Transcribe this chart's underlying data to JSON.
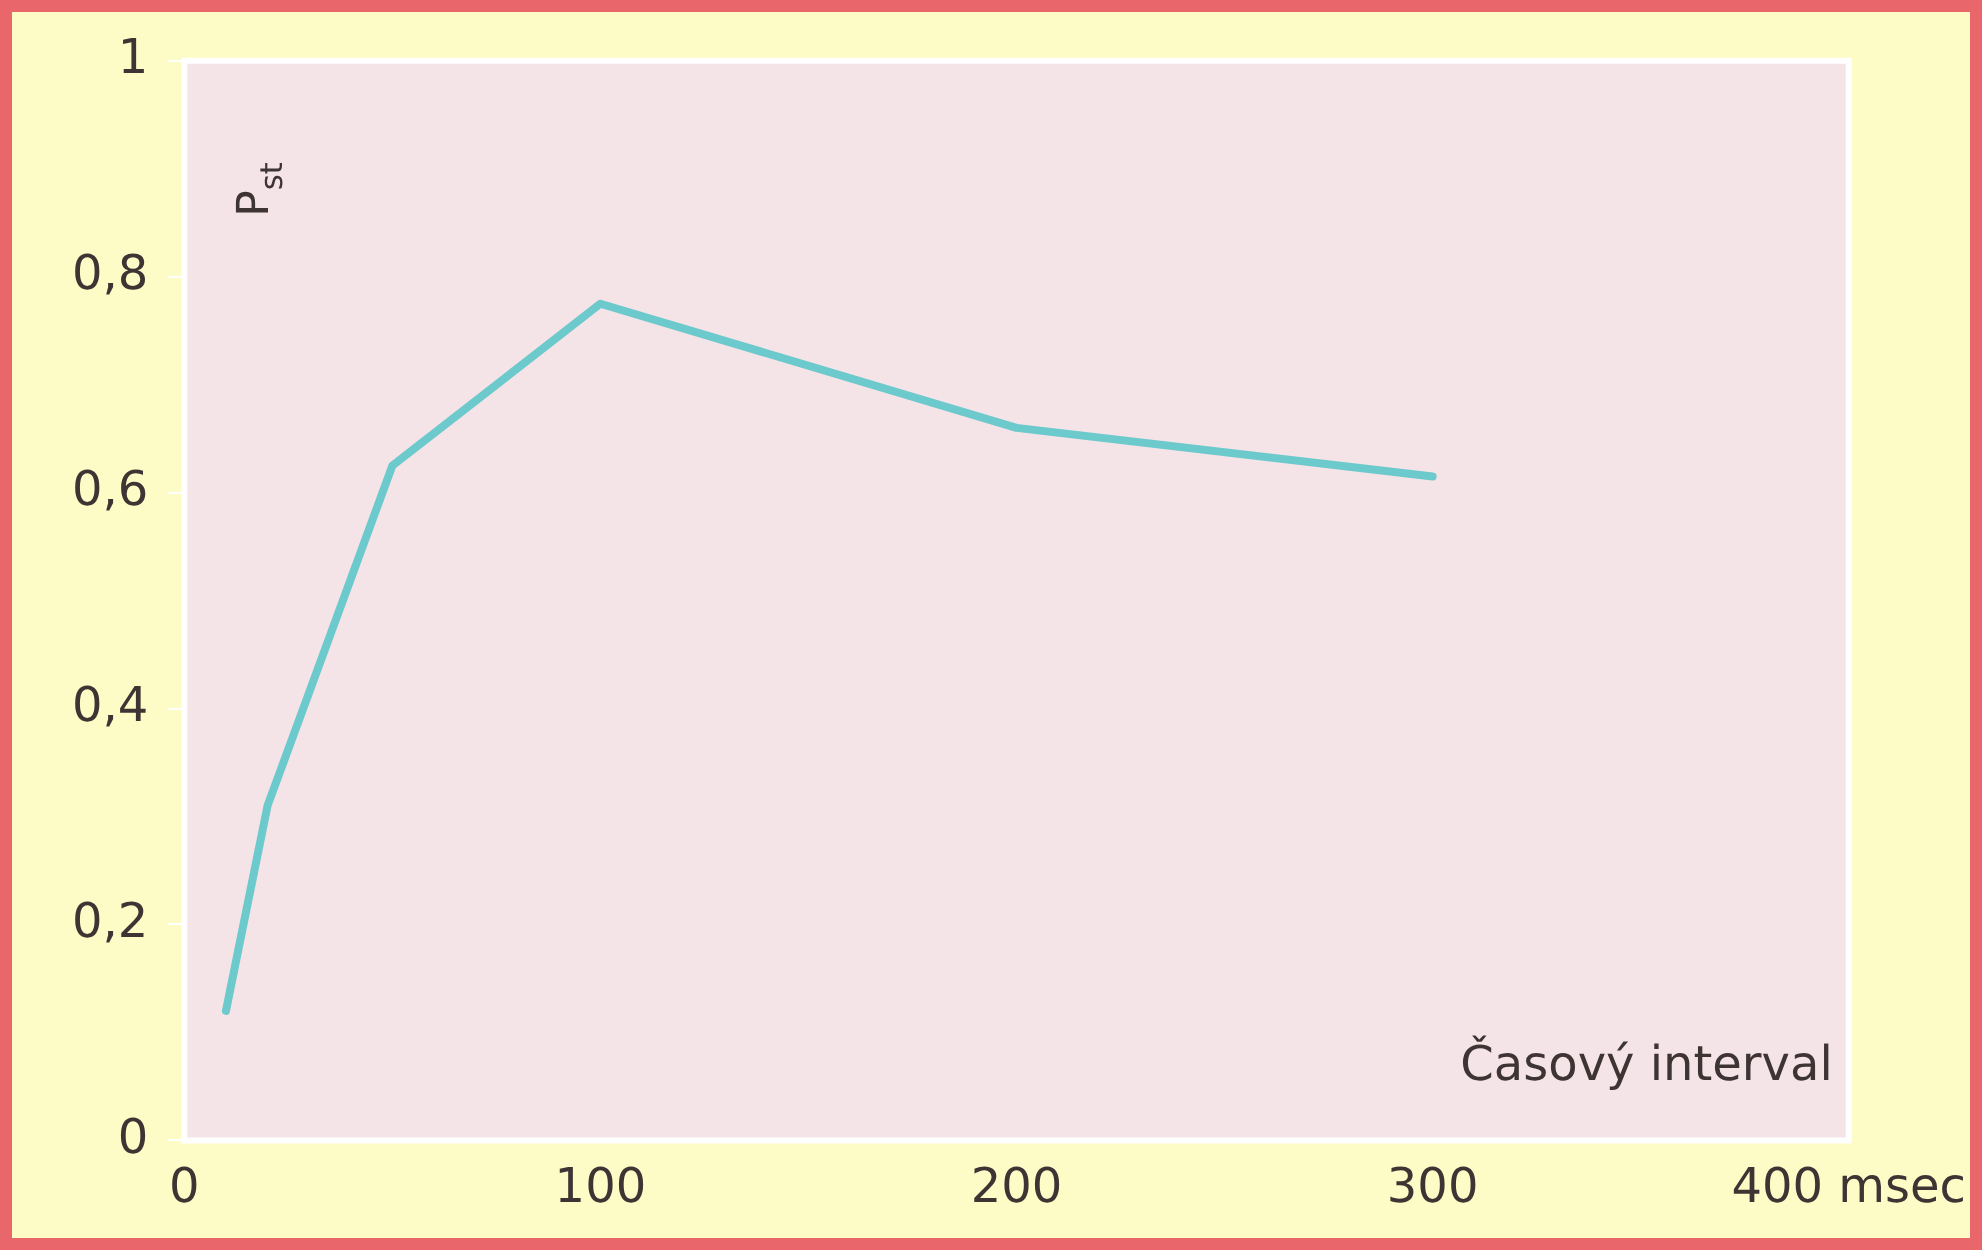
{
  "chart_data": {
    "type": "line",
    "xlabel": "Časový interval",
    "ylabel": "P$_{st}$",
    "x": [
      10,
      20,
      50,
      100,
      200,
      300
    ],
    "series": [
      {
        "color": "#6cc9cc",
        "values": [
          0.12,
          0.31,
          0.625,
          0.775,
          0.66,
          0.615
        ]
      }
    ],
    "xlim": [
      0,
      400
    ],
    "xticks": [
      0,
      100,
      200,
      300,
      {
        "value": 400,
        "label": "400 msec"
      }
    ],
    "ylim": [
      0,
      1
    ],
    "yticks": [
      0,
      {
        "value": 0.2,
        "label": "0,2"
      },
      {
        "value": 0.4,
        "label": "0,4"
      },
      {
        "value": 0.6,
        "label": "0,6"
      },
      {
        "value": 0.8,
        "label": "0,8"
      },
      1
    ],
    "grid": false,
    "legend": false,
    "marker": "none",
    "line_style": "solid"
  }
}
